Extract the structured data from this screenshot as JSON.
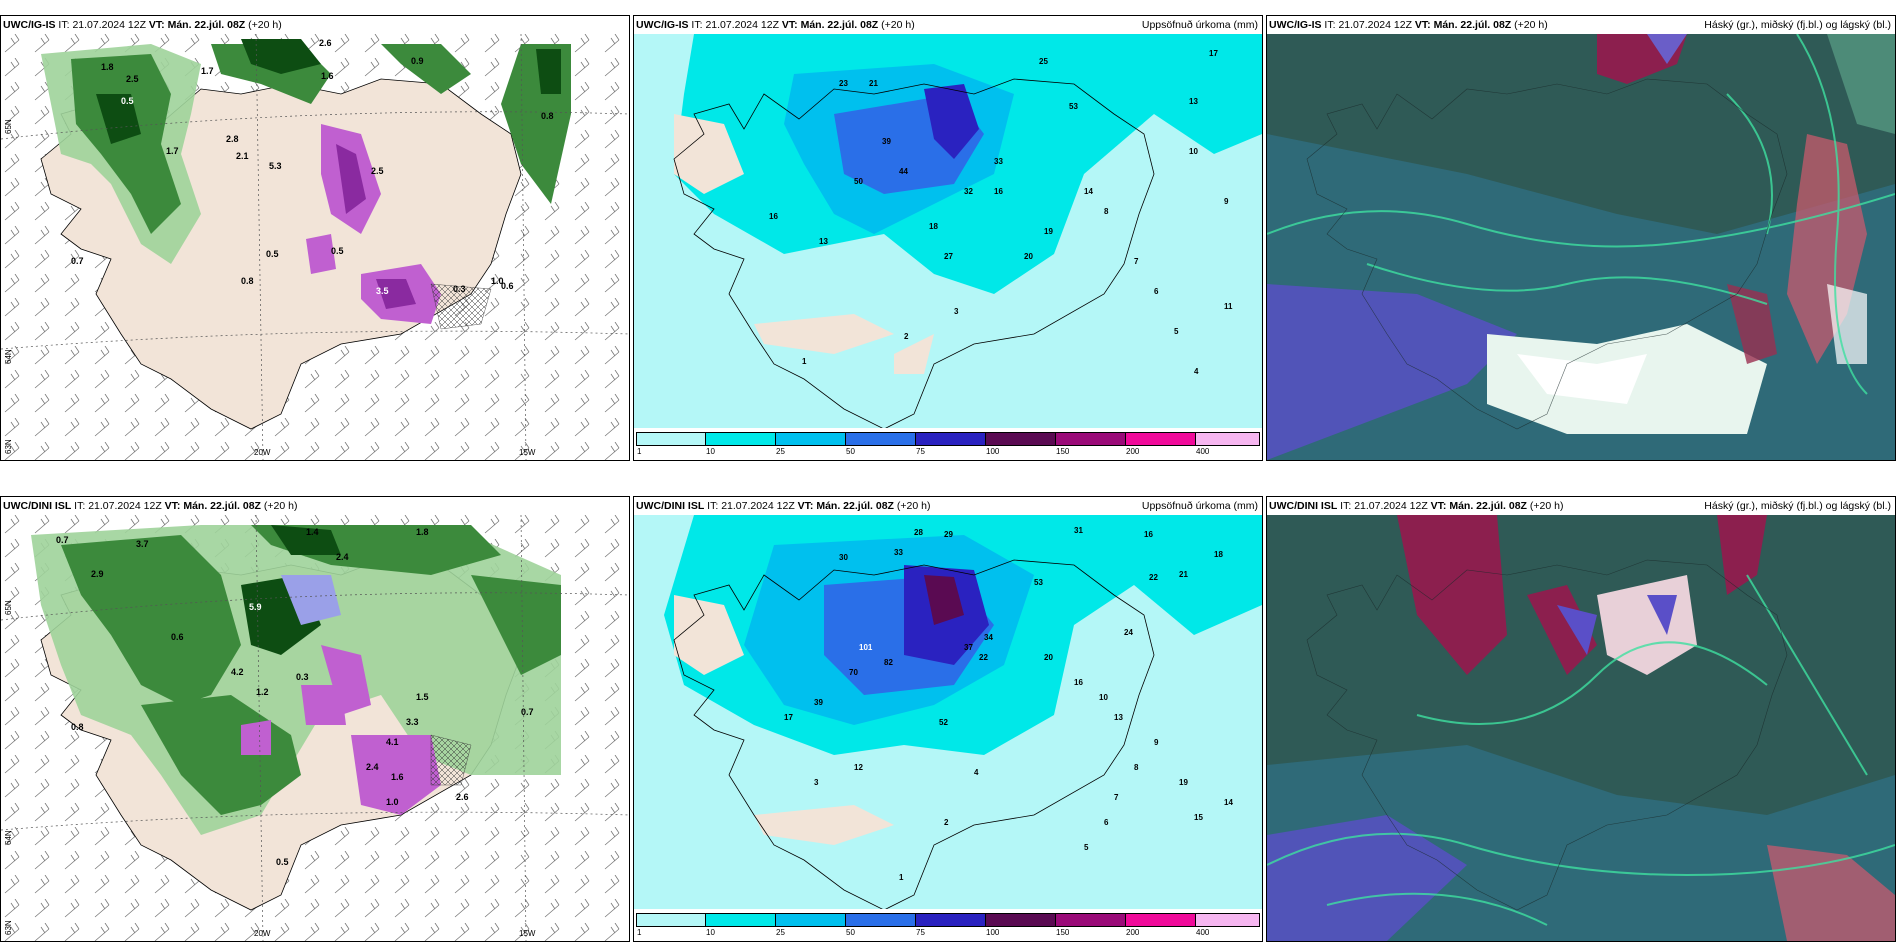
{
  "rows": [
    {
      "model": "UWC/IG-IS",
      "it_label": "IT:",
      "it_value": "21.07.2024 12Z",
      "vt_label": "VT:",
      "vt_value": "Mán. 22.júl. 08Z",
      "lead": "(+20 h)"
    },
    {
      "model": "UWC/DINI ISL",
      "it_label": "IT:",
      "it_value": "21.07.2024 12Z",
      "vt_label": "VT:",
      "vt_value": "Mán. 22.júl. 08Z",
      "lead": "(+20 h)"
    }
  ],
  "precip_title": "Uppsöfnuð úrkoma (mm)",
  "cloud_title": "Háský (gr.), miðský (fj.bl.) og lágský (bl.)",
  "axes": {
    "lat_65": "65N",
    "lat_64": "64N",
    "lat_63": "63N",
    "lon_20": "20W",
    "lon_15": "15W"
  },
  "colorbar": {
    "ticks": [
      "1",
      "10",
      "25",
      "50",
      "75",
      "100",
      "150",
      "200",
      "400"
    ],
    "colors": [
      "#b4f7f7",
      "#00e8e8",
      "#00c0ee",
      "#2a6fe8",
      "#2a22c0",
      "#5a0a52",
      "#9a0a78",
      "#f00a9a",
      "#f6b6f0"
    ]
  },
  "top_left_labels": [
    "1.8",
    "2.5",
    "1.7",
    "2.8",
    "0.9",
    "0.5",
    "0.8",
    "1.7",
    "2.1",
    "5.3",
    "0.5",
    "0.7",
    "0.8",
    "1.0",
    "3.5",
    "0.3",
    "0.6",
    "2.5",
    "0.5",
    "2.6",
    "1.6"
  ],
  "top_mid_labels": [
    "25",
    "23",
    "21",
    "17",
    "13",
    "50",
    "39",
    "44",
    "32",
    "16",
    "27",
    "20",
    "19",
    "16",
    "13",
    "11",
    "10",
    "9",
    "8",
    "7",
    "6",
    "5",
    "4",
    "3",
    "2",
    "1",
    "14",
    "18",
    "33",
    "53"
  ],
  "bot_left_labels": [
    "0.7",
    "2.9",
    "3.7",
    "1.4",
    "2.4",
    "1.8",
    "5.9",
    "0.6",
    "0.8",
    "4.2",
    "1.2",
    "0.3",
    "1.5",
    "4.1",
    "1.6",
    "2.4",
    "0.5",
    "1.0",
    "2.6",
    "3.3",
    "0.7"
  ],
  "bot_mid_labels": [
    "28",
    "29",
    "30",
    "33",
    "31",
    "16",
    "18",
    "22",
    "21",
    "101",
    "70",
    "82",
    "37",
    "34",
    "22",
    "20",
    "16",
    "13",
    "10",
    "9",
    "8",
    "7",
    "6",
    "5",
    "4",
    "3",
    "2",
    "1",
    "52",
    "19",
    "15",
    "14",
    "24",
    "53",
    "39",
    "17",
    "12"
  ]
}
